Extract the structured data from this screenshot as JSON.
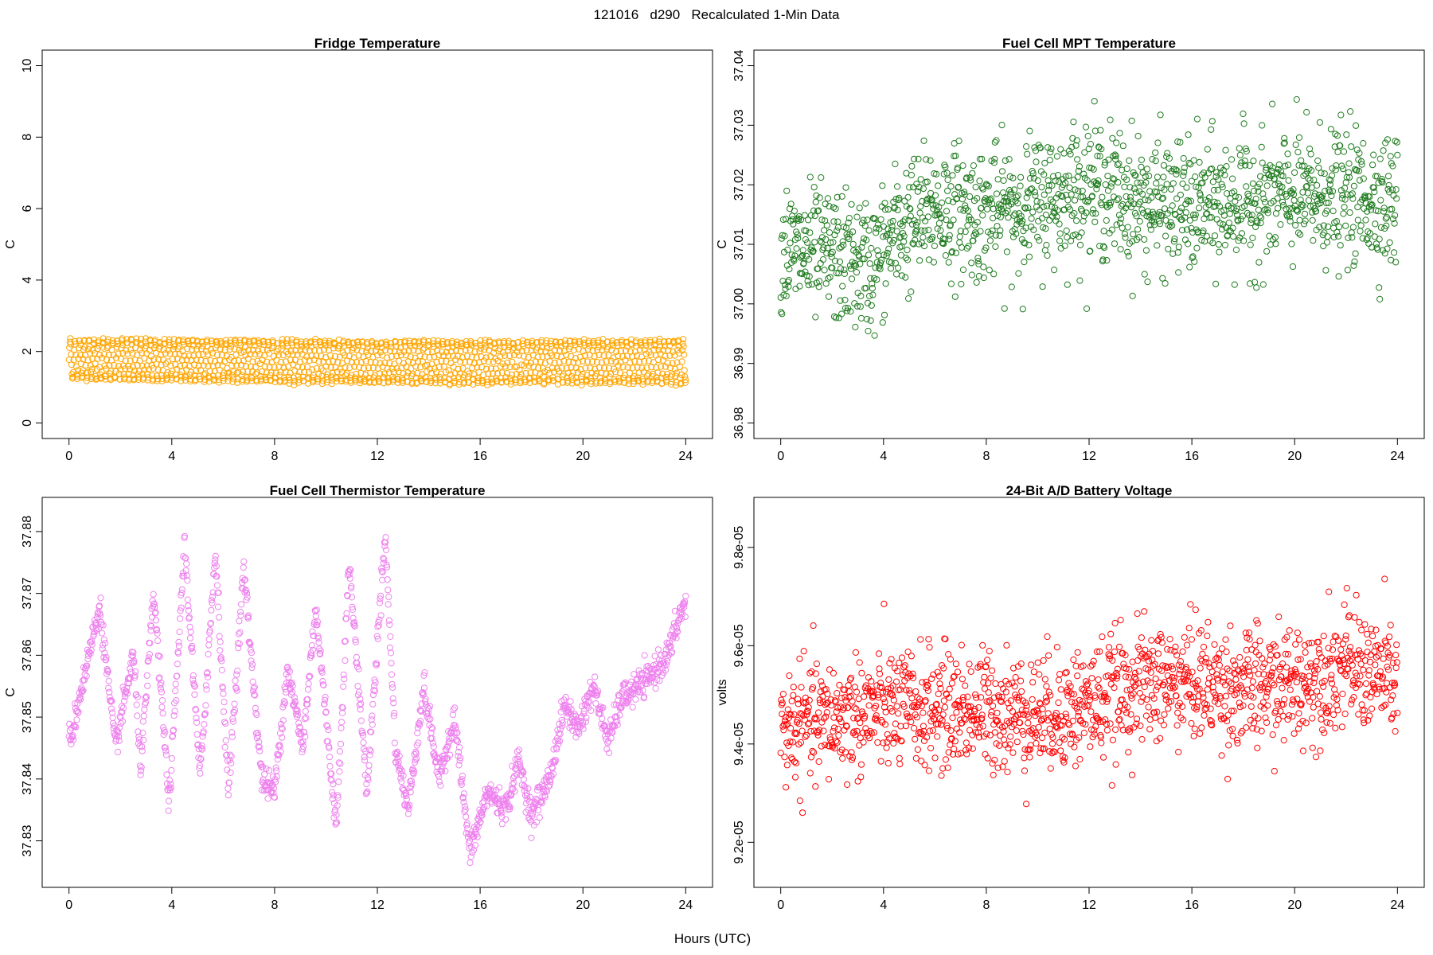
{
  "figure": {
    "suptitle": "121016   d290   Recalculated 1-Min Data",
    "xlabel": "Hours (UTC)"
  },
  "chart_data": [
    {
      "id": "fridge",
      "type": "scatter",
      "title": "Fridge Temperature",
      "ylabel": "C",
      "xlim": [
        0,
        24
      ],
      "ylim": [
        0,
        10
      ],
      "xticks": [
        0,
        4,
        8,
        12,
        16,
        20,
        24
      ],
      "yticks": [
        0,
        2,
        4,
        6,
        8,
        10
      ],
      "ytick_labels": [
        "0",
        "2",
        "4",
        "6",
        "8",
        "10"
      ],
      "color": "#FFA500",
      "series": [
        {
          "name": "Fridge Temperature",
          "x_start": 0,
          "x_end": 24,
          "n_points": 1440,
          "pattern": "oscillating",
          "base_start": 1.75,
          "base_end": 1.7,
          "amp_start": 0.55,
          "amp_end": 0.6,
          "cycle_minutes": 11,
          "anchors": [
            [
              0,
              1.78
            ],
            [
              6,
              1.75
            ],
            [
              12,
              1.7
            ],
            [
              18,
              1.7
            ],
            [
              24,
              1.72
            ]
          ]
        }
      ]
    },
    {
      "id": "mpt",
      "type": "scatter",
      "title": "Fuel Cell MPT Temperature",
      "ylabel": "C",
      "xlim": [
        0,
        24
      ],
      "ylim": [
        36.98,
        37.04
      ],
      "xticks": [
        0,
        4,
        8,
        12,
        16,
        20,
        24
      ],
      "yticks": [
        36.98,
        36.99,
        37.0,
        37.01,
        37.02,
        37.03,
        37.04
      ],
      "ytick_labels": [
        "36.98",
        "36.99",
        "37.00",
        "37.01",
        "37.02",
        "37.03",
        "37.04"
      ],
      "color": "#1E7B1E",
      "series": [
        {
          "name": "Fuel Cell MPT Temperature",
          "x_start": 0,
          "x_end": 24,
          "n_points": 1440,
          "pattern": "noisy",
          "noise": 0.0055,
          "anchors": [
            [
              0,
              37.009
            ],
            [
              2,
              37.008
            ],
            [
              3.5,
              37.006
            ],
            [
              4.5,
              37.012
            ],
            [
              6,
              37.016
            ],
            [
              8,
              37.015
            ],
            [
              10,
              37.017
            ],
            [
              12,
              37.02
            ],
            [
              14,
              37.017
            ],
            [
              16,
              37.016
            ],
            [
              18,
              37.017
            ],
            [
              20,
              37.018
            ],
            [
              22,
              37.018
            ],
            [
              24,
              37.017
            ]
          ]
        }
      ]
    },
    {
      "id": "thermistor",
      "type": "scatter",
      "title": "Fuel Cell Thermistor Temperature",
      "ylabel": "C",
      "xlim": [
        0,
        24
      ],
      "ylim": [
        37.825,
        37.883
      ],
      "xticks": [
        0,
        4,
        8,
        12,
        16,
        20,
        24
      ],
      "yticks": [
        37.83,
        37.84,
        37.85,
        37.86,
        37.87,
        37.88
      ],
      "ytick_labels": [
        "37.83",
        "37.84",
        "37.85",
        "37.86",
        "37.87",
        "37.88"
      ],
      "color": "#EE82EE",
      "series": [
        {
          "name": "Fuel Cell Thermistor Temperature",
          "x_start": 0,
          "x_end": 24,
          "n_points": 1440,
          "pattern": "noisy",
          "noise": 0.0012,
          "anchors": [
            [
              0.1,
              37.847
            ],
            [
              0.5,
              37.855
            ],
            [
              1.2,
              37.868
            ],
            [
              1.8,
              37.845
            ],
            [
              2.5,
              37.86
            ],
            [
              2.8,
              37.842
            ],
            [
              3.3,
              37.87
            ],
            [
              3.9,
              37.836
            ],
            [
              4.5,
              37.878
            ],
            [
              5.1,
              37.84
            ],
            [
              5.7,
              37.877
            ],
            [
              6.2,
              37.838
            ],
            [
              6.8,
              37.874
            ],
            [
              7.5,
              37.84
            ],
            [
              8.0,
              37.838
            ],
            [
              8.5,
              37.858
            ],
            [
              9.1,
              37.845
            ],
            [
              9.6,
              37.868
            ],
            [
              10.4,
              37.832
            ],
            [
              10.9,
              37.875
            ],
            [
              11.6,
              37.838
            ],
            [
              12.3,
              37.88
            ],
            [
              12.7,
              37.845
            ],
            [
              13.2,
              37.835
            ],
            [
              13.8,
              37.855
            ],
            [
              14.4,
              37.84
            ],
            [
              15.0,
              37.85
            ],
            [
              15.6,
              37.828
            ],
            [
              16.3,
              37.838
            ],
            [
              17.0,
              37.835
            ],
            [
              17.5,
              37.843
            ],
            [
              18.0,
              37.834
            ],
            [
              18.7,
              37.84
            ],
            [
              19.3,
              37.852
            ],
            [
              19.8,
              37.848
            ],
            [
              20.4,
              37.855
            ],
            [
              21.0,
              37.846
            ],
            [
              21.5,
              37.853
            ],
            [
              22.5,
              37.856
            ],
            [
              23.3,
              37.86
            ],
            [
              23.9,
              37.868
            ]
          ]
        }
      ]
    },
    {
      "id": "battery",
      "type": "scatter",
      "title": "24-Bit A/D Battery Voltage",
      "ylabel": "volts",
      "xlim": [
        0,
        24
      ],
      "ylim": [
        9.14e-05,
        9.87e-05
      ],
      "xticks": [
        0,
        4,
        8,
        12,
        16,
        20,
        24
      ],
      "yticks": [
        9.2e-05,
        9.4e-05,
        9.6e-05,
        9.8e-05
      ],
      "ytick_labels": [
        "9.2e-05",
        "9.4e-05",
        "9.6e-05",
        "9.8e-05"
      ],
      "color": "#FF0000",
      "series": [
        {
          "name": "24-Bit A/D Battery Voltage",
          "x_start": 0,
          "x_end": 24,
          "n_points": 1440,
          "pattern": "noisy",
          "noise": 6e-07,
          "anchors": [
            [
              0,
              9.43e-05
            ],
            [
              2,
              9.45e-05
            ],
            [
              4,
              9.47e-05
            ],
            [
              6,
              9.47e-05
            ],
            [
              8,
              9.47e-05
            ],
            [
              10,
              9.46e-05
            ],
            [
              12,
              9.48e-05
            ],
            [
              14,
              9.52e-05
            ],
            [
              16,
              9.53e-05
            ],
            [
              18,
              9.51e-05
            ],
            [
              20,
              9.52e-05
            ],
            [
              22,
              9.56e-05
            ],
            [
              24,
              9.53e-05
            ]
          ]
        }
      ]
    }
  ]
}
